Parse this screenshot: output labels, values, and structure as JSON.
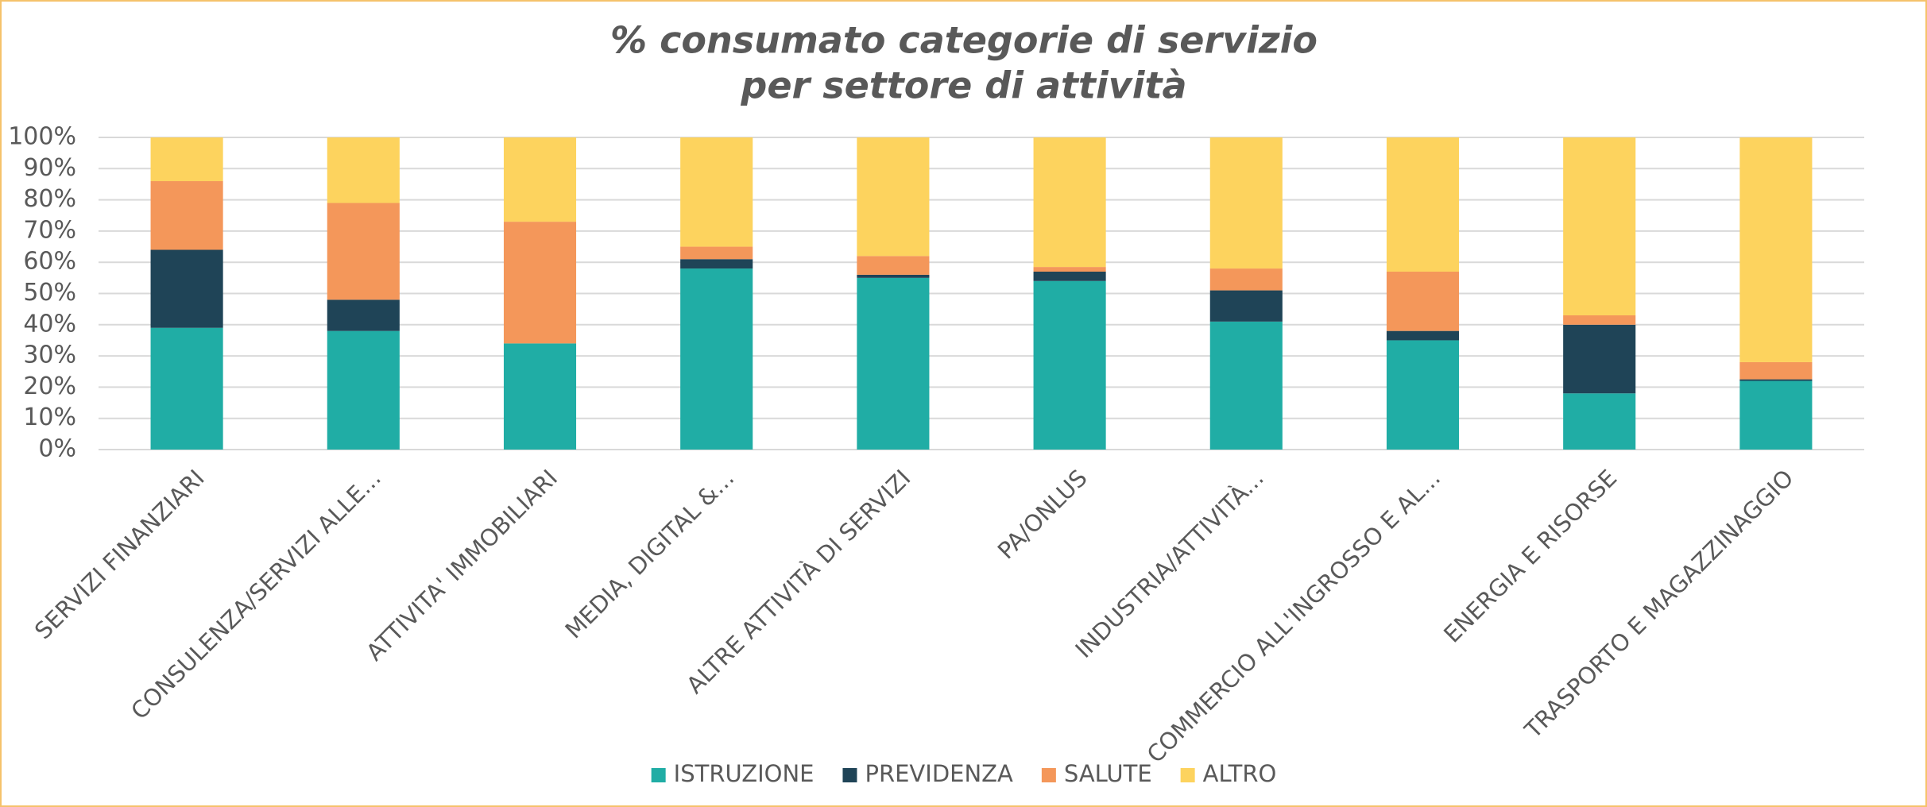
{
  "chart_data": {
    "type": "stacked_bar",
    "title": [
      "% consumato categorie di servizio",
      "per settore di attività"
    ],
    "categories": [
      "SERVIZI FINANZIARI",
      "CONSULENZA/SERVIZI ALLE...",
      "ATTIVITA' IMMOBILIARI",
      "MEDIA, DIGITAL &...",
      "ALTRE ATTIVITÀ DI SERVIZI",
      "PA/ONLUS",
      "INDUSTRIA/ATTIVITÀ...",
      "COMMERCIO ALL'INGROSSO E AL...",
      "ENERGIA E RISORSE",
      "TRASPORTO E MAGAZZINAGGIO"
    ],
    "series": [
      {
        "name": "ISTRUZIONE",
        "color": "#20ada5",
        "values": [
          39,
          38,
          34,
          58,
          55,
          54,
          41,
          35,
          18,
          22
        ]
      },
      {
        "name": "PREVIDENZA",
        "color": "#1f4457",
        "values": [
          25,
          10,
          0,
          3,
          1,
          3,
          10,
          3,
          22,
          0.5
        ]
      },
      {
        "name": "SALUTE",
        "color": "#f4975a",
        "values": [
          22,
          31,
          39,
          4,
          6,
          1.5,
          7,
          19,
          3,
          5.5
        ]
      },
      {
        "name": "ALTRO",
        "color": "#fdd35e",
        "values": [
          14,
          21,
          27,
          35,
          38,
          41.5,
          42,
          43,
          57,
          72
        ]
      }
    ],
    "ylim": [
      0,
      100
    ],
    "yticks": [
      {
        "value": 0,
        "label": "0%"
      },
      {
        "value": 10,
        "label": "10%"
      },
      {
        "value": 20,
        "label": "20%"
      },
      {
        "value": 30,
        "label": "30%"
      },
      {
        "value": 40,
        "label": "40%"
      },
      {
        "value": 50,
        "label": "50%"
      },
      {
        "value": 60,
        "label": "60%"
      },
      {
        "value": 70,
        "label": "70%"
      },
      {
        "value": 80,
        "label": "80%"
      },
      {
        "value": 90,
        "label": "90%"
      },
      {
        "value": 100,
        "label": "100%"
      }
    ],
    "grid": true,
    "legend": "bottom"
  }
}
